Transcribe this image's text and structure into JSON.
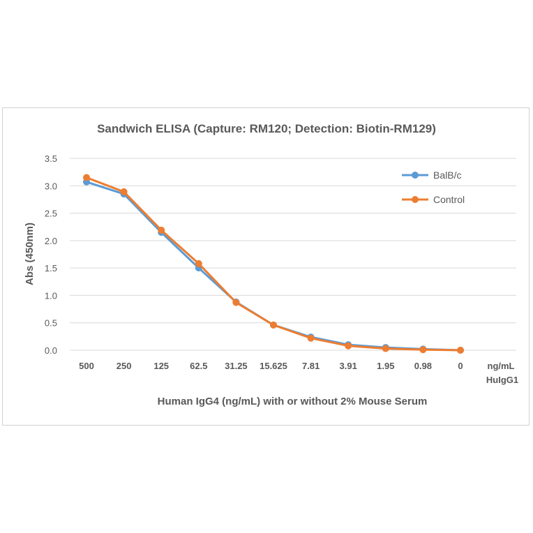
{
  "chart_data": {
    "type": "line",
    "title": "Sandwich ELISA (Capture:  RM120; Detection: Biotin-RM129)",
    "xlabel": "Human IgG4 (ng/mL) with or without 2% Mouse Serum",
    "ylabel": "Abs (450nm)",
    "unit_label_line1": "ng/mL",
    "unit_label_line2": "HuIgG1",
    "categories": [
      "500",
      "250",
      "125",
      "62.5",
      "31.25",
      "15.625",
      "7.81",
      "3.91",
      "1.95",
      "0.98",
      "0"
    ],
    "ylim": [
      0,
      3.5
    ],
    "yticks": [
      "0.0",
      "0.5",
      "1.0",
      "1.5",
      "2.0",
      "2.5",
      "3.0",
      "3.5"
    ],
    "grid": true,
    "legend_position": "top-right",
    "series": [
      {
        "name": "BalB/c",
        "color": "#5B9BD5",
        "values": [
          3.07,
          2.85,
          2.15,
          1.5,
          0.88,
          0.46,
          0.24,
          0.1,
          0.05,
          0.02,
          0.0
        ]
      },
      {
        "name": "Control",
        "color": "#ED7D31",
        "values": [
          3.15,
          2.89,
          2.19,
          1.58,
          0.87,
          0.46,
          0.22,
          0.08,
          0.03,
          0.01,
          0.0
        ]
      }
    ]
  }
}
